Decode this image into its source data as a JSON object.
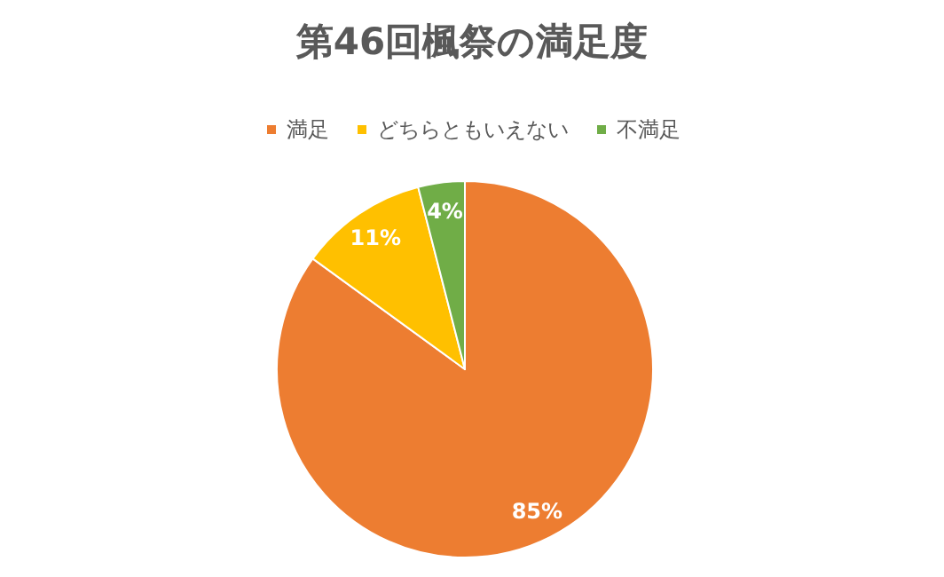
{
  "chart_data": {
    "type": "pie",
    "title": "第46回楓祭の満足度",
    "categories": [
      "満足",
      "どちらともいえない",
      "不満足"
    ],
    "values": [
      85,
      11,
      4
    ],
    "colors": [
      "#ed7d31",
      "#ffc000",
      "#70ad47"
    ],
    "value_labels": [
      "85%",
      "11%",
      "4%"
    ],
    "legend": "top"
  }
}
